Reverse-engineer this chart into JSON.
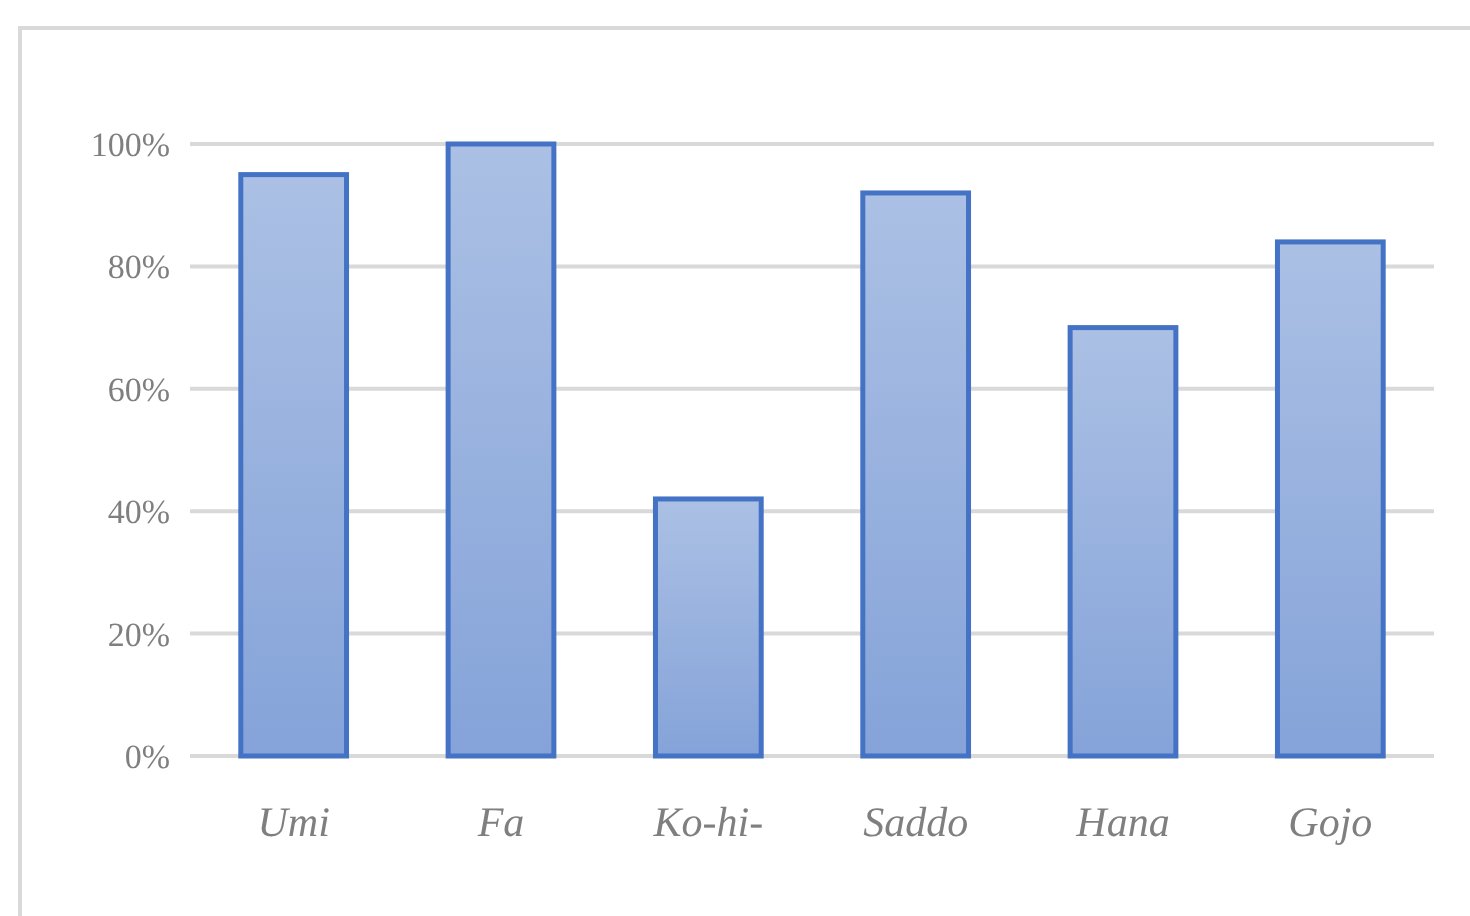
{
  "chart_data": {
    "type": "bar",
    "categories": [
      "Umi",
      "Fa",
      "Ko-hi-",
      "Saddo",
      "Hana",
      "Gojo"
    ],
    "values": [
      95,
      100,
      42,
      92,
      70,
      84
    ],
    "color": "#4472c4",
    "ylim": [
      0,
      100
    ],
    "yticks": [
      {
        "value": 0,
        "label": "0%"
      },
      {
        "value": 20,
        "label": "20%"
      },
      {
        "value": 40,
        "label": "40%"
      },
      {
        "value": 60,
        "label": "60%"
      },
      {
        "value": 80,
        "label": "80%"
      },
      {
        "value": 100,
        "label": "100%"
      }
    ],
    "grid": "y"
  }
}
